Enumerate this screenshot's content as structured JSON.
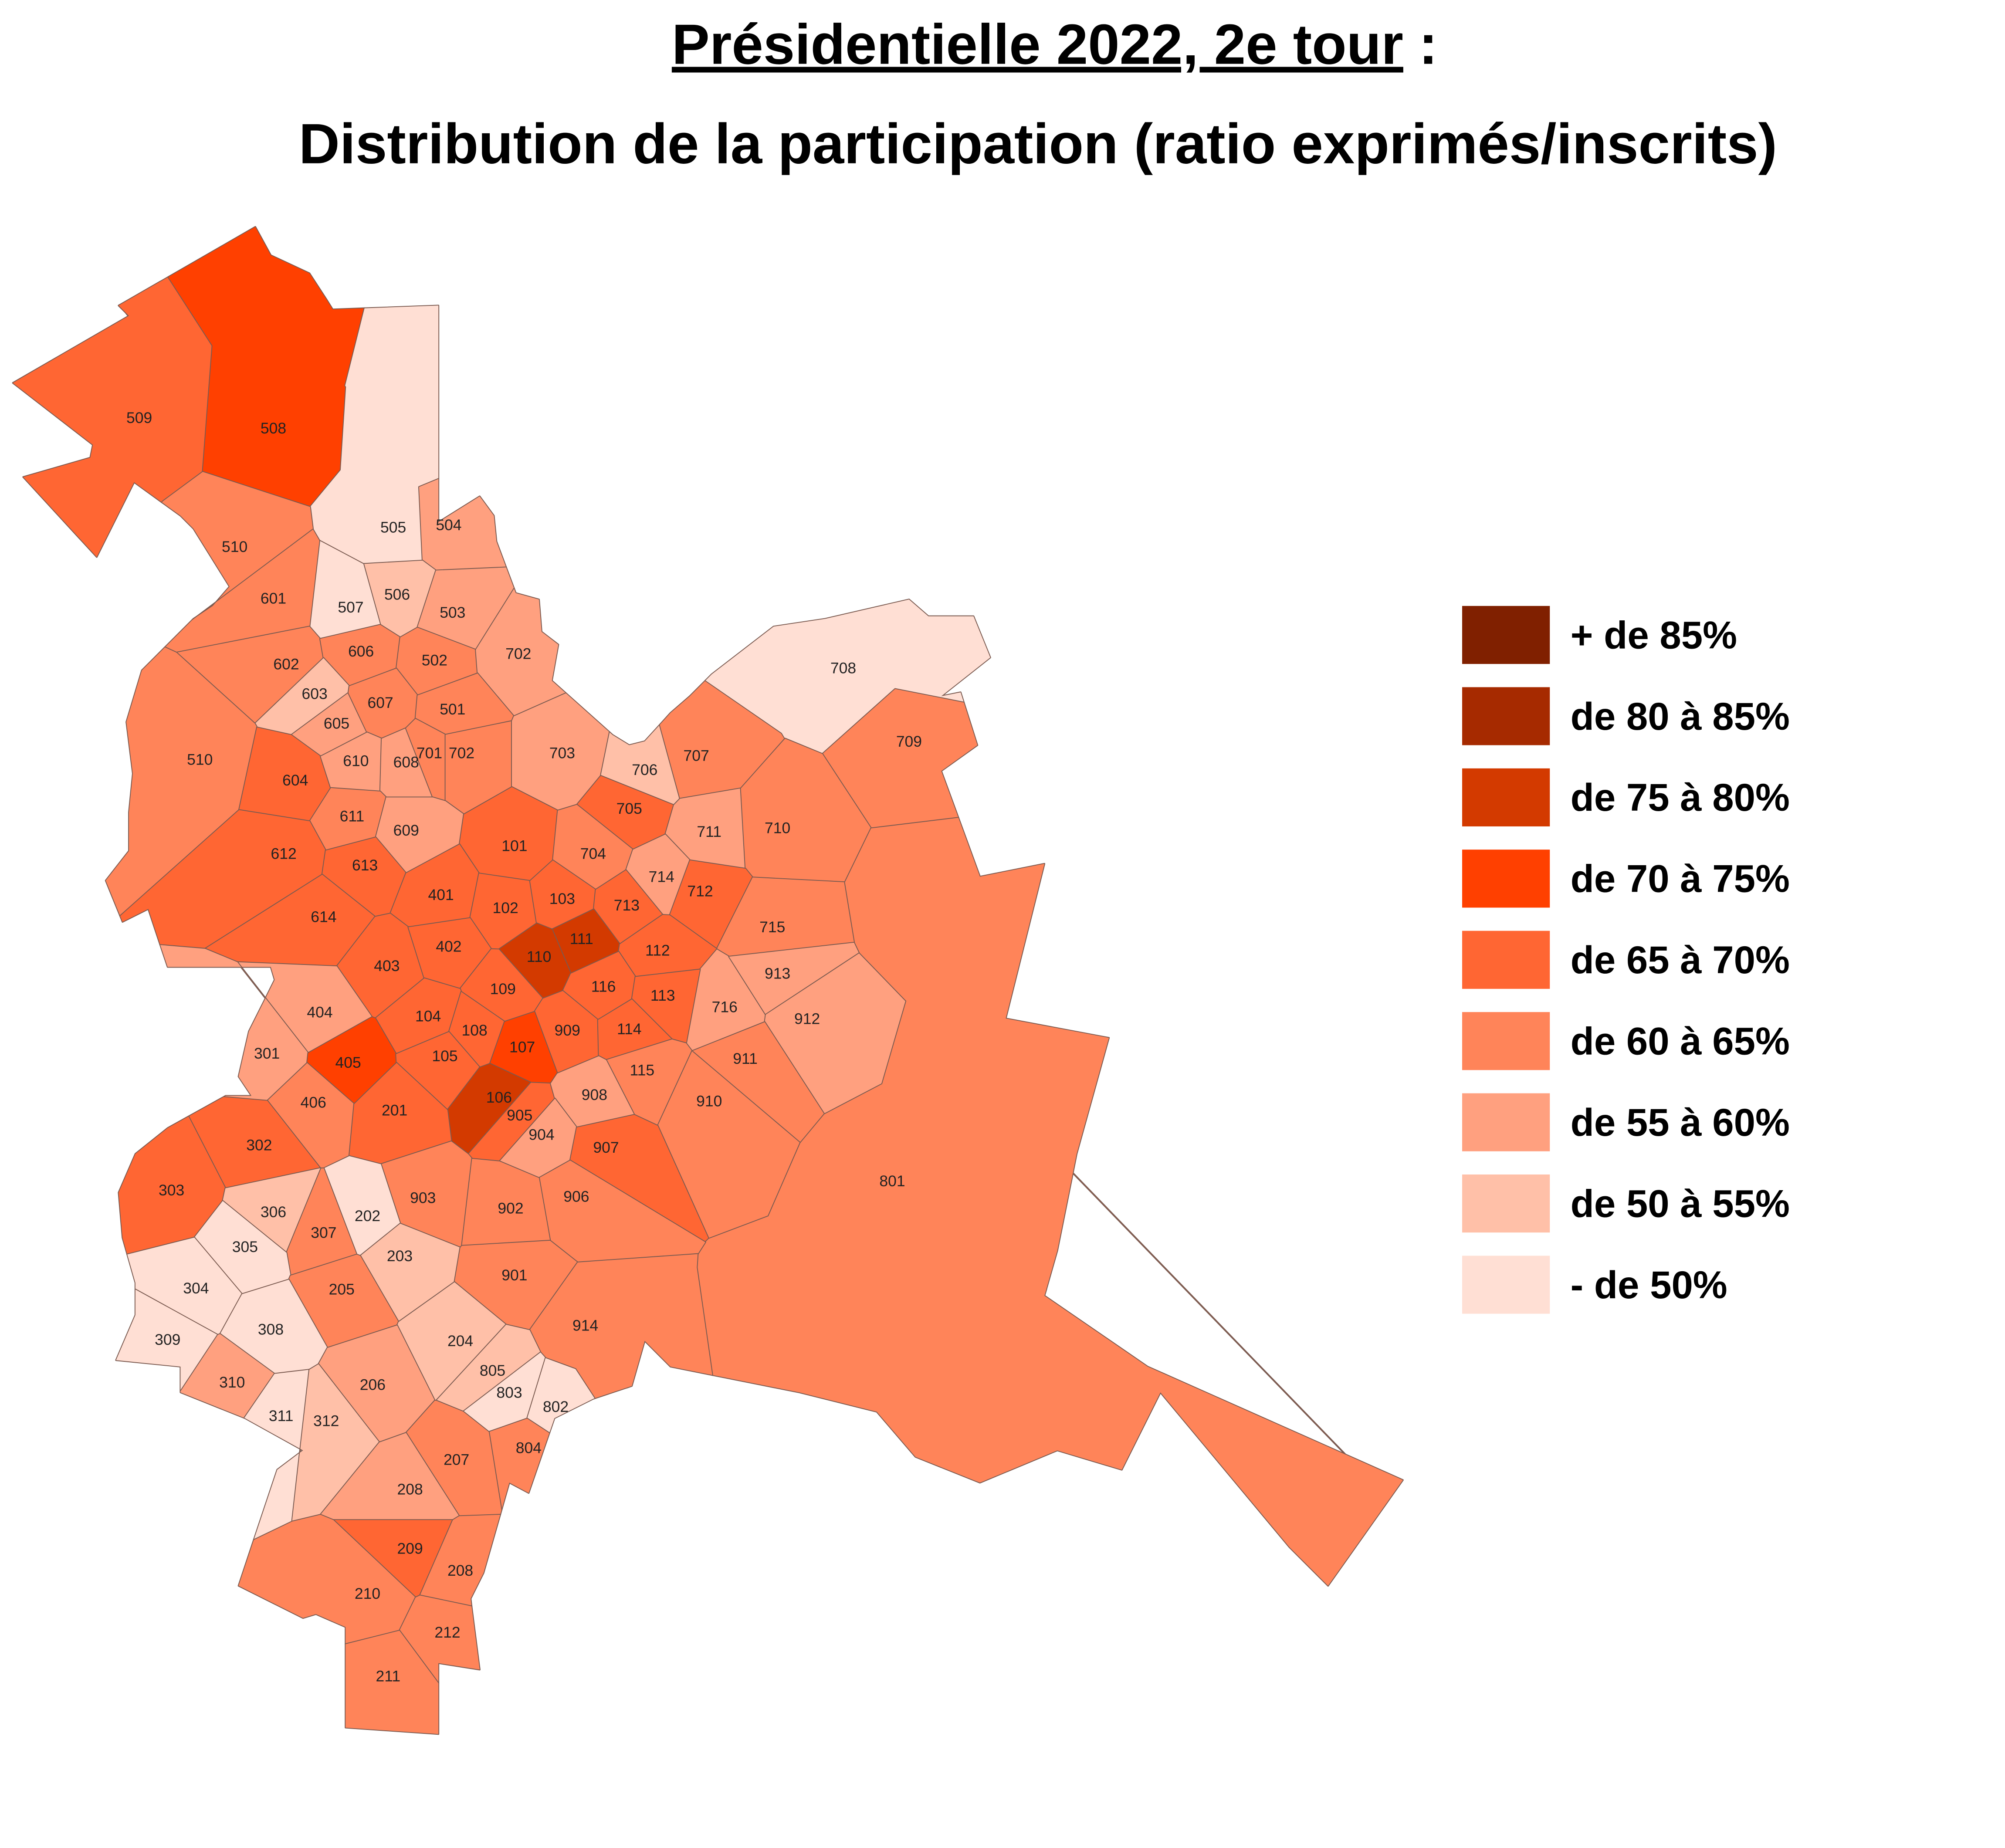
{
  "title": {
    "main": "Présidentielle 2022, 2e tour",
    "suffix": ":"
  },
  "subtitle": "Distribution de la participation (ratio exprimés/inscrits)",
  "legend": [
    {
      "label": "+ de 85%",
      "color": "#802000"
    },
    {
      "label": "de 80 à 85%",
      "color": "#a62a00"
    },
    {
      "label": "de 75 à 80%",
      "color": "#d33a00"
    },
    {
      "label": "de 70 à 75%",
      "color": "#ff4000"
    },
    {
      "label": "de 65 à 70%",
      "color": "#ff6633"
    },
    {
      "label": "de 60 à 65%",
      "color": "#ff8459"
    },
    {
      "label": "de 55 à 60%",
      "color": "#ffa07f"
    },
    {
      "label": "de 50 à 55%",
      "color": "#ffc0a8"
    },
    {
      "label": "- de 50%",
      "color": "#ffdfd4"
    }
  ],
  "regions": [
    {
      "label": "509",
      "color": "#ff6633"
    },
    {
      "label": "508",
      "color": "#ff4000"
    },
    {
      "label": "505",
      "color": "#ffdfd4"
    },
    {
      "label": "504",
      "color": "#ffa07f"
    },
    {
      "label": "510",
      "color": "#ff8459"
    },
    {
      "label": "506",
      "color": "#ffc0a8"
    },
    {
      "label": "507",
      "color": "#ffdfd4"
    },
    {
      "label": "503",
      "color": "#ffa07f"
    },
    {
      "label": "601",
      "color": "#ff8459"
    },
    {
      "label": "602",
      "color": "#ff8459"
    },
    {
      "label": "606",
      "color": "#ff8459"
    },
    {
      "label": "502",
      "color": "#ff8459"
    },
    {
      "label": "702",
      "color": "#ffa07f"
    },
    {
      "label": "603",
      "color": "#ffc0a8"
    },
    {
      "label": "605",
      "color": "#ffa07f"
    },
    {
      "label": "607",
      "color": "#ff8459"
    },
    {
      "label": "501",
      "color": "#ff8459"
    },
    {
      "label": "510",
      "color": "#ff8459"
    },
    {
      "label": "604",
      "color": "#ff6633"
    },
    {
      "label": "610",
      "color": "#ffa07f"
    },
    {
      "label": "608",
      "color": "#ffa07f"
    },
    {
      "label": "701",
      "color": "#ff8459"
    },
    {
      "label": "702",
      "color": "#ff8459"
    },
    {
      "label": "703",
      "color": "#ffa07f"
    },
    {
      "label": "706",
      "color": "#ffc0a8"
    },
    {
      "label": "707",
      "color": "#ff8459"
    },
    {
      "label": "708",
      "color": "#ffdfd4"
    },
    {
      "label": "709",
      "color": "#ff8459"
    },
    {
      "label": "611",
      "color": "#ff8459"
    },
    {
      "label": "609",
      "color": "#ffa07f"
    },
    {
      "label": "705",
      "color": "#ff6633"
    },
    {
      "label": "711",
      "color": "#ffa07f"
    },
    {
      "label": "710",
      "color": "#ff8459"
    },
    {
      "label": "612",
      "color": "#ff6633"
    },
    {
      "label": "613",
      "color": "#ff6633"
    },
    {
      "label": "101",
      "color": "#ff6633"
    },
    {
      "label": "704",
      "color": "#ff8459"
    },
    {
      "label": "714",
      "color": "#ffa07f"
    },
    {
      "label": "712",
      "color": "#ff6633"
    },
    {
      "label": "614",
      "color": "#ff6633"
    },
    {
      "label": "401",
      "color": "#ff6633"
    },
    {
      "label": "102",
      "color": "#ff6633"
    },
    {
      "label": "103",
      "color": "#ff6633"
    },
    {
      "label": "713",
      "color": "#ff6633"
    },
    {
      "label": "715",
      "color": "#ff8459"
    },
    {
      "label": "111",
      "color": "#d33a00"
    },
    {
      "label": "112",
      "color": "#ff6633"
    },
    {
      "label": "403",
      "color": "#ff6633"
    },
    {
      "label": "402",
      "color": "#ff6633"
    },
    {
      "label": "110",
      "color": "#d33a00"
    },
    {
      "label": "716",
      "color": "#ffa07f"
    },
    {
      "label": "913",
      "color": "#ffa07f"
    },
    {
      "label": "109",
      "color": "#ff6633"
    },
    {
      "label": "116",
      "color": "#ff6633"
    },
    {
      "label": "113",
      "color": "#ff6633"
    },
    {
      "label": "912",
      "color": "#ffa07f"
    },
    {
      "label": "404",
      "color": "#ffa07f"
    },
    {
      "label": "104",
      "color": "#ff6633"
    },
    {
      "label": "108",
      "color": "#ff6633"
    },
    {
      "label": "909",
      "color": "#ff6633"
    },
    {
      "label": "114",
      "color": "#ff6633"
    },
    {
      "label": "301",
      "color": "#ffa07f"
    },
    {
      "label": "405",
      "color": "#ff4000"
    },
    {
      "label": "105",
      "color": "#ff6633"
    },
    {
      "label": "107",
      "color": "#ff4000"
    },
    {
      "label": "911",
      "color": "#ff8459"
    },
    {
      "label": "115",
      "color": "#ff8459"
    },
    {
      "label": "406",
      "color": "#ff8459"
    },
    {
      "label": "106",
      "color": "#d33a00"
    },
    {
      "label": "905",
      "color": "#ff6633"
    },
    {
      "label": "908",
      "color": "#ffa07f"
    },
    {
      "label": "910",
      "color": "#ff8459"
    },
    {
      "label": "201",
      "color": "#ff6633"
    },
    {
      "label": "904",
      "color": "#ffa07f"
    },
    {
      "label": "907",
      "color": "#ff6633"
    },
    {
      "label": "302",
      "color": "#ff6633"
    },
    {
      "label": "801",
      "color": "#ff8459"
    },
    {
      "label": "303",
      "color": "#ff6633"
    },
    {
      "label": "903",
      "color": "#ff8459"
    },
    {
      "label": "906",
      "color": "#ff8459"
    },
    {
      "label": "306",
      "color": "#ffc0a8"
    },
    {
      "label": "202",
      "color": "#ffdfd4"
    },
    {
      "label": "902",
      "color": "#ff8459"
    },
    {
      "label": "307",
      "color": "#ff8459"
    },
    {
      "label": "305",
      "color": "#ffdfd4"
    },
    {
      "label": "203",
      "color": "#ffc0a8"
    },
    {
      "label": "901",
      "color": "#ff8459"
    },
    {
      "label": "304",
      "color": "#ffdfd4"
    },
    {
      "label": "205",
      "color": "#ff8459"
    },
    {
      "label": "308",
      "color": "#ffdfd4"
    },
    {
      "label": "914",
      "color": "#ff8459"
    },
    {
      "label": "309",
      "color": "#ffdfd4"
    },
    {
      "label": "204",
      "color": "#ffc0a8"
    },
    {
      "label": "805",
      "color": "#ffc0a8"
    },
    {
      "label": "310",
      "color": "#ffa07f"
    },
    {
      "label": "206",
      "color": "#ffa07f"
    },
    {
      "label": "803",
      "color": "#ffdfd4"
    },
    {
      "label": "802",
      "color": "#ffdfd4"
    },
    {
      "label": "311",
      "color": "#ffdfd4"
    },
    {
      "label": "312",
      "color": "#ffc0a8"
    },
    {
      "label": "804",
      "color": "#ff8459"
    },
    {
      "label": "207",
      "color": "#ff8459"
    },
    {
      "label": "208",
      "color": "#ffa07f"
    },
    {
      "label": "209",
      "color": "#ff6633"
    },
    {
      "label": "208",
      "color": "#ff8459"
    },
    {
      "label": "210",
      "color": "#ff8459"
    },
    {
      "label": "212",
      "color": "#ff8459"
    },
    {
      "label": "211",
      "color": "#ff8459"
    }
  ]
}
